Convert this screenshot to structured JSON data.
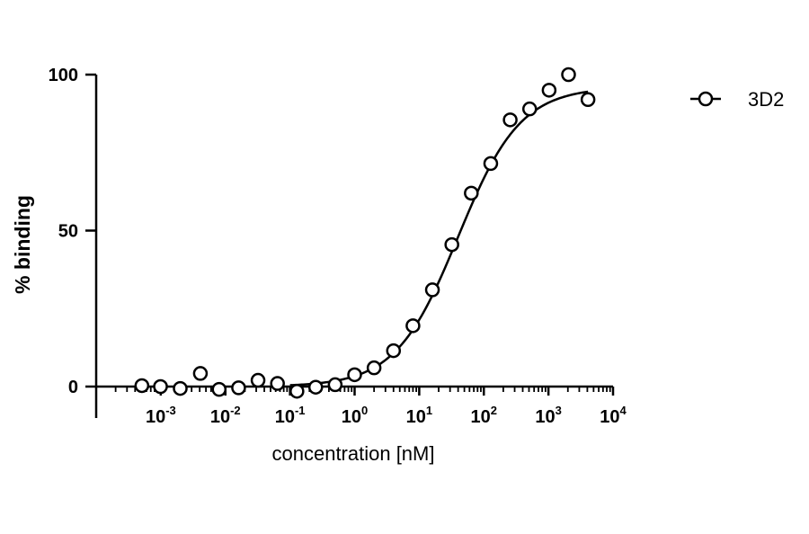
{
  "chart_data": {
    "type": "scatter",
    "xlabel": "concentration [nM]",
    "ylabel": "% binding",
    "x_scale": "log",
    "xlim": [
      0.0001,
      10000
    ],
    "ylim": [
      0,
      100
    ],
    "x_tick_labels": [
      {
        "value": 0.001,
        "base": "10",
        "exp": "-3"
      },
      {
        "value": 0.01,
        "base": "10",
        "exp": "-2"
      },
      {
        "value": 0.1,
        "base": "10",
        "exp": "-1"
      },
      {
        "value": 1,
        "base": "10",
        "exp": "0"
      },
      {
        "value": 10,
        "base": "10",
        "exp": "1"
      },
      {
        "value": 100,
        "base": "10",
        "exp": "2"
      },
      {
        "value": 1000,
        "base": "10",
        "exp": "3"
      },
      {
        "value": 10000,
        "base": "10",
        "exp": "4"
      }
    ],
    "y_ticks": [
      0,
      50,
      100
    ],
    "y_tick_labels": [
      "0",
      "50",
      "100"
    ],
    "grid": false,
    "legend_position": "top-right",
    "series": [
      {
        "name": "3D2",
        "marker": "open-circle",
        "color": "#000000",
        "points": [
          {
            "x": 0.00051,
            "y": 0.3
          },
          {
            "x": 0.00099,
            "y": 0.0
          },
          {
            "x": 0.002,
            "y": -0.6
          },
          {
            "x": 0.0041,
            "y": 4.2
          },
          {
            "x": 0.008,
            "y": -0.9
          },
          {
            "x": 0.016,
            "y": -0.4
          },
          {
            "x": 0.032,
            "y": 2.0
          },
          {
            "x": 0.064,
            "y": 1.0
          },
          {
            "x": 0.128,
            "y": -1.5
          },
          {
            "x": 0.25,
            "y": -0.2
          },
          {
            "x": 0.5,
            "y": 0.6
          },
          {
            "x": 1.0,
            "y": 3.8
          },
          {
            "x": 2.0,
            "y": 6.0
          },
          {
            "x": 4.0,
            "y": 11.5
          },
          {
            "x": 8.0,
            "y": 19.5
          },
          {
            "x": 16.0,
            "y": 31.0
          },
          {
            "x": 32.0,
            "y": 45.5
          },
          {
            "x": 64.0,
            "y": 62.0
          },
          {
            "x": 128.0,
            "y": 71.5
          },
          {
            "x": 256.0,
            "y": 85.5
          },
          {
            "x": 512.0,
            "y": 89.0
          },
          {
            "x": 1024.0,
            "y": 95.0
          },
          {
            "x": 2048.0,
            "y": 100.0
          },
          {
            "x": 4096.0,
            "y": 92.0
          }
        ],
        "fit_curve": {
          "type": "sigmoidal",
          "bottom": 0,
          "top": 96,
          "ec50": 40,
          "hill": 0.9,
          "x_range": [
            0.1,
            4096
          ]
        }
      }
    ]
  }
}
